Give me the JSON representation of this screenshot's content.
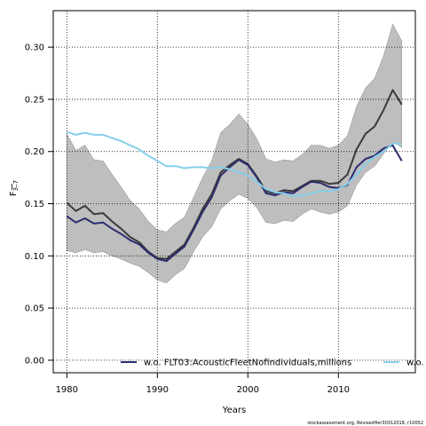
{
  "chart_data": {
    "type": "line",
    "title": "",
    "xlabel": "Years",
    "ylabel_main": "F",
    "ylabel_sub": "3–7",
    "xlim": [
      1978.5,
      2018.5
    ],
    "ylim": [
      -0.012,
      0.335
    ],
    "x_ticks": [
      1980,
      1990,
      2000,
      2010
    ],
    "y_ticks": [
      0.0,
      0.05,
      0.1,
      0.15,
      0.2,
      0.25,
      0.3
    ],
    "y_tick_labels": [
      "0.00",
      "0.05",
      "0.10",
      "0.15",
      "0.20",
      "0.25",
      "0.30"
    ],
    "grid": true,
    "legend_position": "bottom",
    "x": [
      1980,
      1981,
      1982,
      1983,
      1984,
      1985,
      1986,
      1987,
      1988,
      1989,
      1990,
      1991,
      1992,
      1993,
      1994,
      1995,
      1996,
      1997,
      1998,
      1999,
      2000,
      2001,
      2002,
      2003,
      2004,
      2005,
      2006,
      2007,
      2008,
      2009,
      2010,
      2011,
      2012,
      2013,
      2014,
      2015,
      2016,
      2017
    ],
    "band": {
      "color": "#bebebe",
      "upper": [
        0.217,
        0.201,
        0.206,
        0.192,
        0.191,
        0.178,
        0.166,
        0.153,
        0.145,
        0.133,
        0.125,
        0.123,
        0.131,
        0.137,
        0.156,
        0.175,
        0.191,
        0.218,
        0.226,
        0.236,
        0.226,
        0.212,
        0.193,
        0.19,
        0.192,
        0.191,
        0.197,
        0.206,
        0.206,
        0.203,
        0.206,
        0.215,
        0.243,
        0.261,
        0.27,
        0.292,
        0.322,
        0.306
      ],
      "lower": [
        0.105,
        0.103,
        0.106,
        0.103,
        0.104,
        0.1,
        0.097,
        0.093,
        0.09,
        0.084,
        0.077,
        0.074,
        0.082,
        0.088,
        0.104,
        0.118,
        0.128,
        0.145,
        0.153,
        0.159,
        0.155,
        0.146,
        0.132,
        0.131,
        0.134,
        0.133,
        0.14,
        0.145,
        0.142,
        0.14,
        0.142,
        0.148,
        0.168,
        0.18,
        0.186,
        0.198,
        0.21,
        0.204
      ]
    },
    "series": [
      {
        "name": "",
        "color": "#3a3a3a",
        "values": [
          0.151,
          0.143,
          0.148,
          0.14,
          0.141,
          0.133,
          0.126,
          0.118,
          0.113,
          0.104,
          0.098,
          0.097,
          0.104,
          0.111,
          0.127,
          0.145,
          0.159,
          0.18,
          0.187,
          0.193,
          0.188,
          0.176,
          0.162,
          0.16,
          0.163,
          0.162,
          0.167,
          0.172,
          0.172,
          0.169,
          0.17,
          0.178,
          0.202,
          0.217,
          0.224,
          0.24,
          0.259,
          0.245
        ]
      },
      {
        "name": "w.o. FLT03:AcousticFleetNofindividuals,millions",
        "color": "#2b2d6e",
        "values": [
          0.138,
          0.132,
          0.136,
          0.131,
          0.132,
          0.126,
          0.121,
          0.115,
          0.111,
          0.103,
          0.097,
          0.095,
          0.102,
          0.109,
          0.125,
          0.142,
          0.156,
          0.177,
          0.185,
          0.192,
          0.187,
          0.175,
          0.16,
          0.158,
          0.161,
          0.16,
          0.166,
          0.171,
          0.17,
          0.166,
          0.165,
          0.168,
          0.185,
          0.193,
          0.196,
          0.203,
          0.206,
          0.191
        ]
      },
      {
        "name": "w.o. CPI",
        "color": "#87ceeb",
        "values": [
          0.219,
          0.216,
          0.218,
          0.216,
          0.216,
          0.213,
          0.21,
          0.206,
          0.202,
          0.196,
          0.191,
          0.186,
          0.186,
          0.184,
          0.185,
          0.185,
          0.184,
          0.185,
          0.183,
          0.18,
          0.177,
          0.171,
          0.164,
          0.161,
          0.16,
          0.157,
          0.158,
          0.16,
          0.162,
          0.162,
          0.164,
          0.169,
          0.178,
          0.188,
          0.195,
          0.2,
          0.208,
          0.207
        ]
      }
    ]
  },
  "footer": "stockassessment.org, RevisedHer30312018, r10052"
}
